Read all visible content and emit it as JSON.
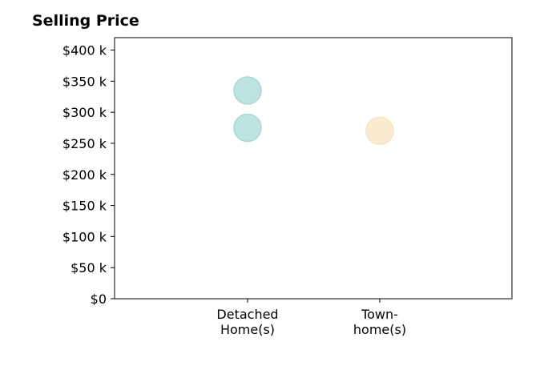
{
  "chart_data": {
    "type": "scatter",
    "title": "Selling Price",
    "categories": [
      "Detached\nHome(s)",
      "Town-\nhome(s)"
    ],
    "y_tick_labels": [
      "$0",
      "$50 k",
      "$100 k",
      "$150 k",
      "$200 k",
      "$250 k",
      "$300 k",
      "$350 k",
      "$400 k"
    ],
    "ylim": [
      0,
      420000
    ],
    "points": [
      {
        "category": "Detached\nHome(s)",
        "y": 335000,
        "color": "#a8d8d4"
      },
      {
        "category": "Detached\nHome(s)",
        "y": 275000,
        "color": "#a8d8d4"
      },
      {
        "category": "Town-\nhome(s)",
        "y": 270000,
        "color": "#f7e4bf"
      }
    ],
    "grid": false,
    "legend": "none"
  }
}
